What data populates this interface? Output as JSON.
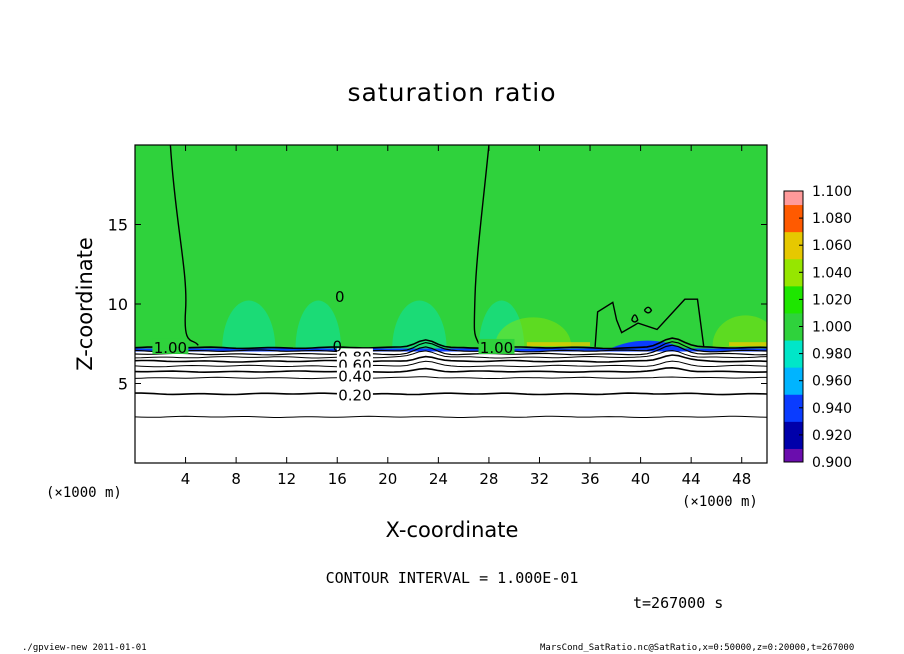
{
  "chart_data": {
    "type": "heatmap",
    "title": "saturation ratio",
    "xlabel": "X-coordinate",
    "ylabel": "Z-coordinate",
    "x_unit": "(×1000 m)",
    "x_unit_right": "(×1000 m)",
    "z_unit": "(×1000 m)",
    "xlim": [
      0,
      50
    ],
    "ylim": [
      0,
      20
    ],
    "xticks": [
      4,
      8,
      12,
      16,
      20,
      24,
      28,
      32,
      36,
      40,
      44,
      48
    ],
    "yticks": [
      5,
      10,
      15
    ],
    "contour_interval_text": "CONTOUR INTERVAL = 1.000E-01",
    "time_text": "t=267000 s",
    "contour_labels": [
      {
        "text": "1.00",
        "x": 2.8,
        "z": 7.3
      },
      {
        "text": "1.00",
        "x": 28.6,
        "z": 7.3
      },
      {
        "text": "0.80",
        "x": 17.4,
        "z": 6.7
      },
      {
        "text": "0.60",
        "x": 17.4,
        "z": 6.2
      },
      {
        "text": "0.40",
        "x": 17.4,
        "z": 5.5
      },
      {
        "text": "0.20",
        "x": 17.4,
        "z": 4.3
      },
      {
        "text": "0",
        "x": 16.2,
        "z": 10.5
      },
      {
        "text": "0",
        "x": 16.0,
        "z": 7.4
      }
    ],
    "colorbar": {
      "levels": [
        0.9,
        0.92,
        0.94,
        0.96,
        0.98,
        1.0,
        1.02,
        1.04,
        1.06,
        1.08,
        1.1
      ],
      "labels": [
        "0.900",
        "0.920",
        "0.940",
        "0.960",
        "0.980",
        "1.000",
        "1.020",
        "1.040",
        "1.060",
        "1.080",
        "1.100"
      ],
      "colors": [
        "#6a0dad",
        "#0000aa",
        "#0a3cff",
        "#00b4ff",
        "#00e6c8",
        "#2fd23c",
        "#1ee600",
        "#96e600",
        "#e6c800",
        "#ff5a00",
        "#ff9a9a"
      ]
    }
  },
  "footer": {
    "left": "./gpview-new  2011-01-01",
    "right": "MarsCond_SatRatio.nc@SatRatio,x=0:50000,z=0:20000,t=267000"
  }
}
